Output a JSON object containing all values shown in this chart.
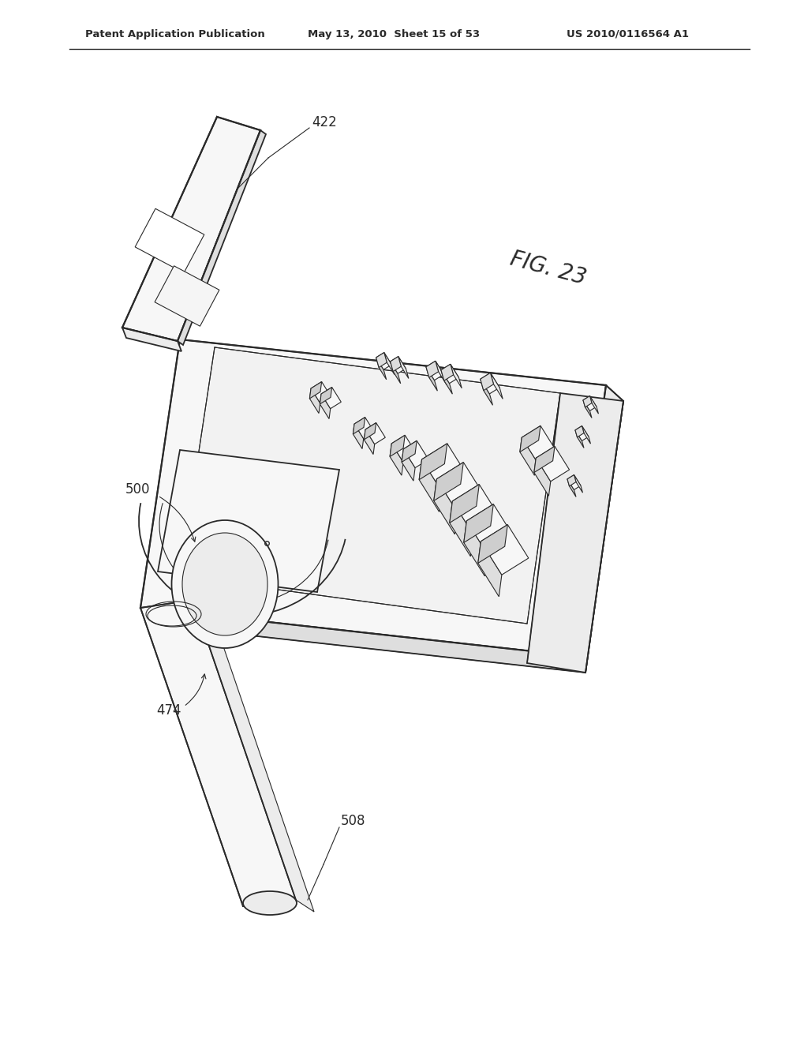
{
  "bg_color": "#ffffff",
  "lc": "#2a2a2a",
  "lc_light": "#555555",
  "header_left": "Patent Application Publication",
  "header_center": "May 13, 2010  Sheet 15 of 53",
  "header_right": "US 2010/0116564 A1",
  "fig_label": "FIG. 23",
  "lw_main": 1.3,
  "lw_thin": 0.8,
  "lw_thick": 1.6,
  "fc_light": "#f7f7f7",
  "fc_mid": "#ececec",
  "fc_dark": "#dedede",
  "fc_darker": "#cecece"
}
